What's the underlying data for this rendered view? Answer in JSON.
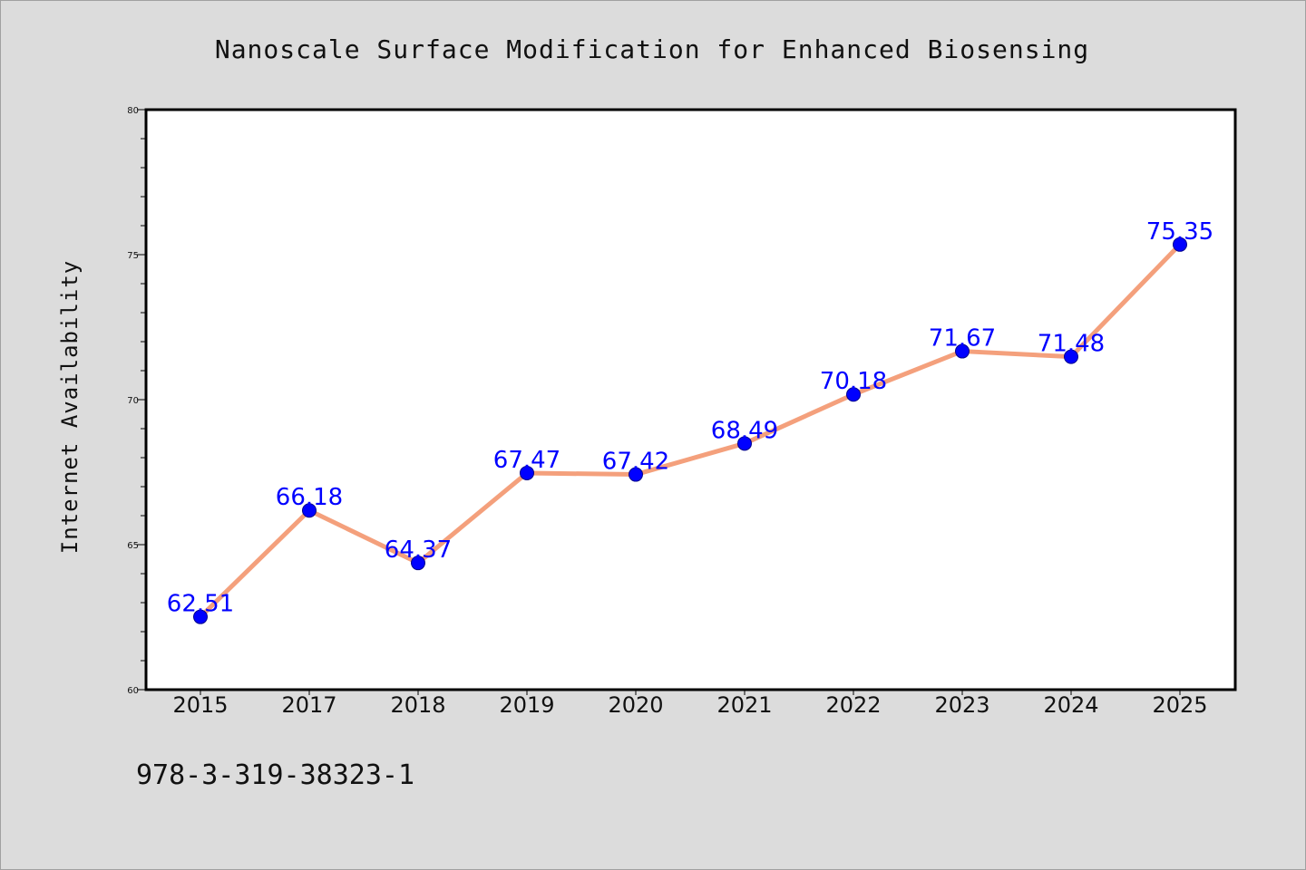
{
  "chart_data": {
    "type": "line",
    "title": "Nanoscale Surface Modification for Enhanced Biosensing",
    "xlabel": "",
    "ylabel": "Internet Availability",
    "categories": [
      "2015",
      "2017",
      "2018",
      "2019",
      "2020",
      "2021",
      "2022",
      "2023",
      "2024",
      "2025"
    ],
    "series": [
      {
        "values": [
          62.51,
          66.18,
          64.37,
          67.47,
          67.42,
          68.49,
          70.18,
          71.67,
          71.48,
          75.35
        ],
        "value_labels": [
          "62.51",
          "66.18",
          "64.37",
          "67.47",
          "67.42",
          "68.49",
          "70.18",
          "71.67",
          "71.48",
          "75.35"
        ],
        "line_color": "#f4a07c",
        "marker_color": "#0000ff",
        "label_color": "#0000ff"
      }
    ],
    "ylim": [
      60,
      80
    ],
    "yticks": [
      "60",
      "65",
      "70",
      "75",
      "80"
    ],
    "grid": false,
    "legend": "none"
  },
  "footnote": "978-3-319-38323-1",
  "colors": {
    "background": "#dcdcdc",
    "plot_area": "#ffffff",
    "axis": "#000000"
  }
}
